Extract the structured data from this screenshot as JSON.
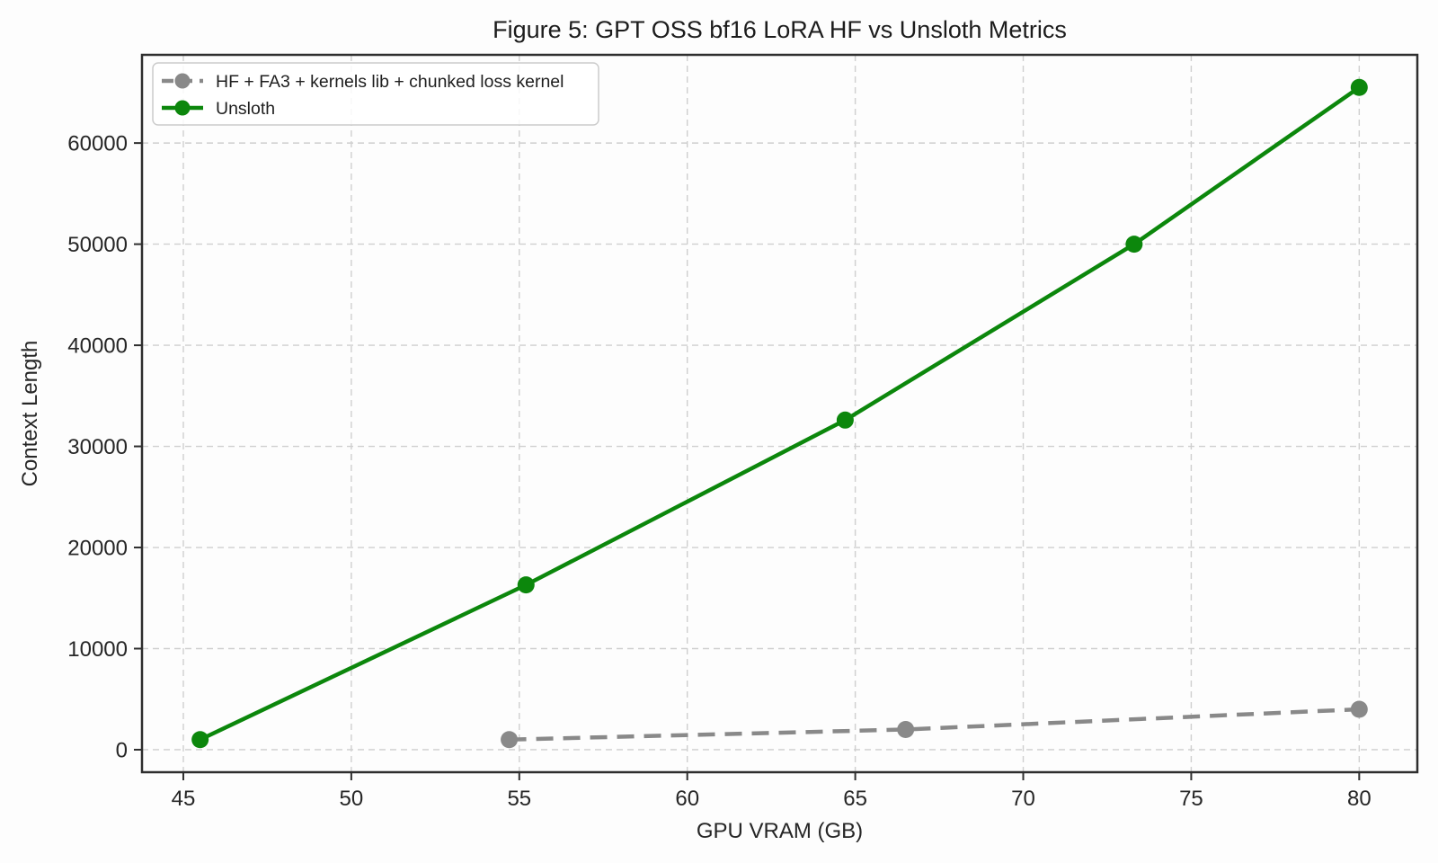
{
  "figure": {
    "background": "#fdfdfd",
    "plot_background": "#ffffff",
    "spine_color": "#2e2e2e",
    "grid_color": "#cfcfcf",
    "tick_label_color": "#262626",
    "legend_border_color": "#cccccc",
    "legend_text_color": "#1f1f1f"
  },
  "chart_data": {
    "type": "line",
    "title": "Figure 5: GPT OSS bf16 LoRA HF vs Unsloth Metrics",
    "xlabel": "GPU VRAM (GB)",
    "ylabel": "Context Length",
    "xlim": [
      43.77,
      81.73
    ],
    "ylim": [
      -2225,
      68725
    ],
    "xticks": [
      45,
      50,
      55,
      60,
      65,
      70,
      75,
      80
    ],
    "yticks": [
      0,
      10000,
      20000,
      30000,
      40000,
      50000,
      60000
    ],
    "grid": true,
    "grid_style": "dashed",
    "legend_position": "upper-left",
    "series": [
      {
        "name": "HF + FA3 + kernels lib + chunked loss kernel",
        "color": "#898989",
        "style": "dashed",
        "marker": "circle",
        "x": [
          54.7,
          66.5,
          80.0
        ],
        "y": [
          1000,
          2000,
          4000
        ]
      },
      {
        "name": "Unsloth",
        "color": "#0c870c",
        "style": "solid",
        "marker": "circle",
        "x": [
          45.5,
          55.2,
          64.7,
          73.3,
          80.0
        ],
        "y": [
          1000,
          16300,
          32600,
          50000,
          65500
        ]
      }
    ]
  }
}
